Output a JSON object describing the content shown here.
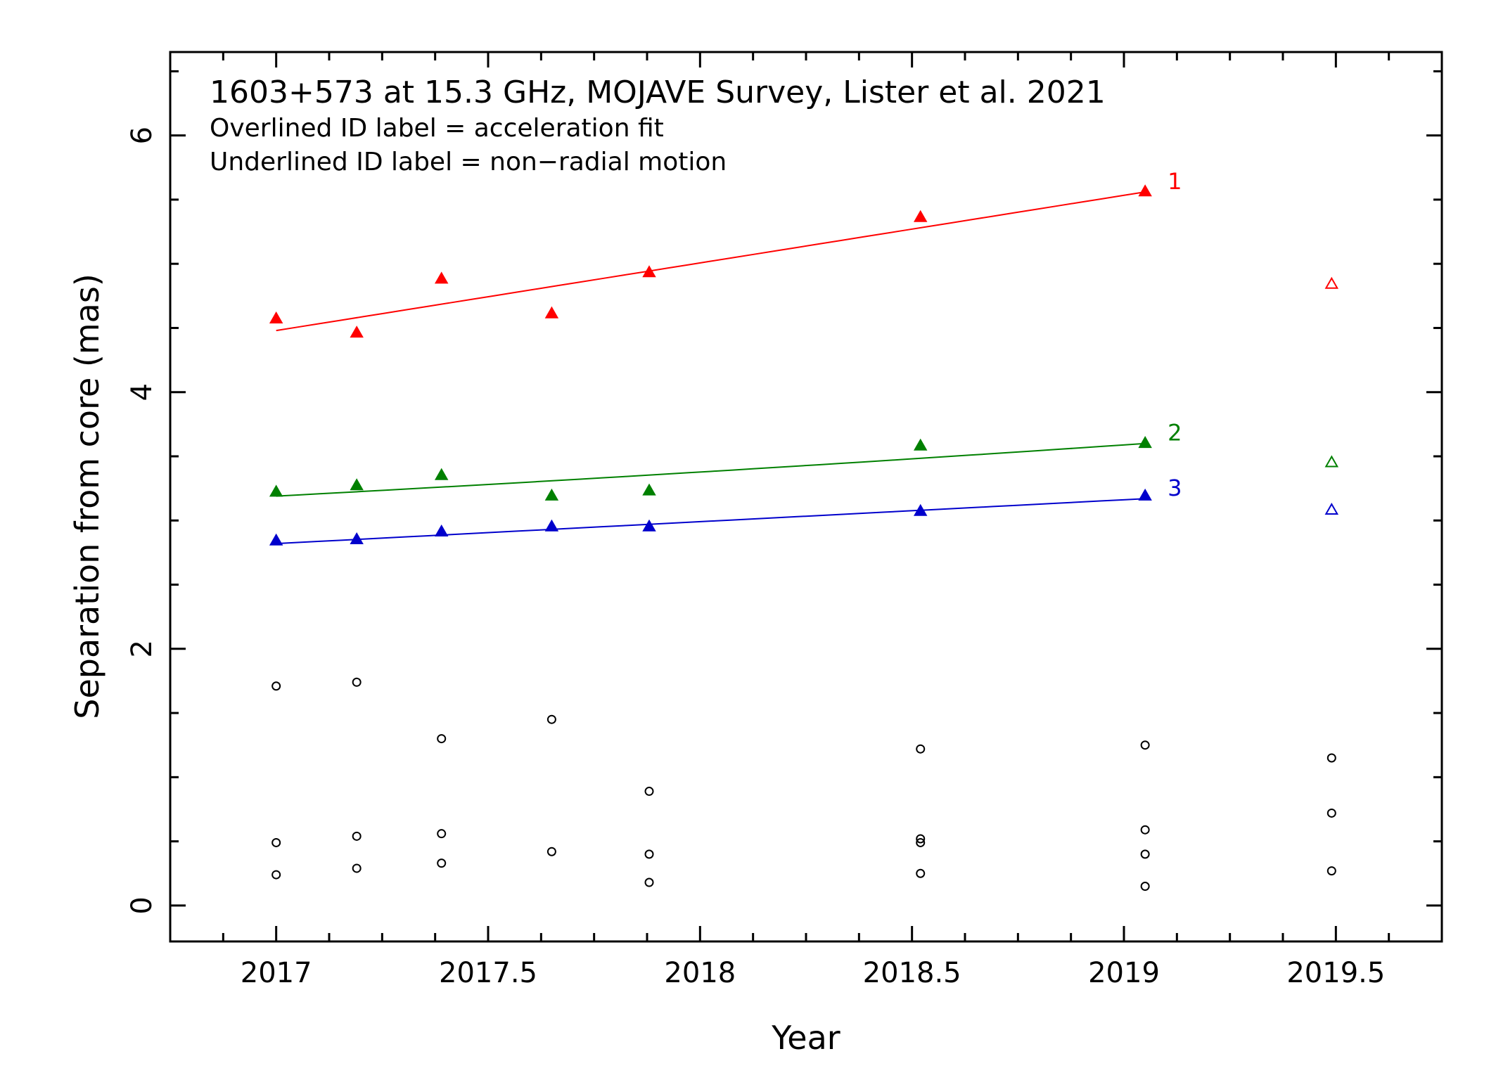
{
  "chart_data": {
    "type": "scatter",
    "title": "1603+573 at 15.3 GHz, MOJAVE Survey, Lister et al. 2021",
    "annotations": [
      "Overlined ID label = acceleration fit",
      "Underlined ID label = non−radial motion"
    ],
    "xlabel": "Year",
    "ylabel": "Separation from core (mas)",
    "xlim": [
      2016.75,
      2019.75
    ],
    "ylim": [
      -0.28,
      6.65
    ],
    "xticks": [
      2017,
      2017.5,
      2018,
      2018.5,
      2019,
      2019.5
    ],
    "xtick_labels": [
      "2017",
      "2017.5",
      "2018",
      "2018.5",
      "2019",
      "2019.5"
    ],
    "yticks": [
      0,
      2,
      4,
      6
    ],
    "ytick_labels": [
      "0",
      "2",
      "4",
      "6"
    ],
    "series": [
      {
        "name": "1",
        "color": "#ff0000",
        "marker": "filled-triangle",
        "points": [
          [
            2017.0,
            4.57
          ],
          [
            2017.19,
            4.46
          ],
          [
            2017.39,
            4.88
          ],
          [
            2017.65,
            4.61
          ],
          [
            2017.88,
            4.93
          ],
          [
            2018.52,
            5.36
          ],
          [
            2019.05,
            5.56
          ]
        ],
        "fit": [
          [
            2017.0,
            4.48
          ],
          [
            2019.05,
            5.56
          ]
        ],
        "fit_curvature": 0,
        "unfit_points": [
          [
            2019.49,
            4.84
          ]
        ]
      },
      {
        "name": "2",
        "color": "#008000",
        "marker": "filled-triangle",
        "points": [
          [
            2017.0,
            3.22
          ],
          [
            2017.19,
            3.27
          ],
          [
            2017.39,
            3.35
          ],
          [
            2017.65,
            3.19
          ],
          [
            2017.88,
            3.23
          ],
          [
            2018.52,
            3.58
          ],
          [
            2019.05,
            3.6
          ]
        ],
        "fit": [
          [
            2017.0,
            3.19
          ],
          [
            2019.05,
            3.6
          ]
        ],
        "fit_curvature": 0.05,
        "unfit_points": [
          [
            2019.49,
            3.45
          ]
        ]
      },
      {
        "name": "3",
        "color": "#0000cc",
        "marker": "filled-triangle",
        "points": [
          [
            2017.0,
            2.84
          ],
          [
            2017.19,
            2.85
          ],
          [
            2017.39,
            2.91
          ],
          [
            2017.65,
            2.95
          ],
          [
            2017.88,
            2.95
          ],
          [
            2018.52,
            3.07
          ],
          [
            2019.05,
            3.19
          ]
        ],
        "fit": [
          [
            2017.0,
            2.82
          ],
          [
            2019.05,
            3.17
          ]
        ],
        "fit_curvature": 0,
        "unfit_points": [
          [
            2019.49,
            3.08
          ]
        ]
      }
    ],
    "unidentified_components": {
      "color": "#000000",
      "marker": "open-circle",
      "points": [
        [
          2017.0,
          1.71
        ],
        [
          2017.0,
          0.49
        ],
        [
          2017.0,
          0.24
        ],
        [
          2017.19,
          1.74
        ],
        [
          2017.19,
          0.54
        ],
        [
          2017.19,
          0.29
        ],
        [
          2017.39,
          1.3
        ],
        [
          2017.39,
          0.56
        ],
        [
          2017.39,
          0.33
        ],
        [
          2017.65,
          1.45
        ],
        [
          2017.65,
          0.42
        ],
        [
          2017.88,
          0.89
        ],
        [
          2017.88,
          0.4
        ],
        [
          2017.88,
          0.18
        ],
        [
          2018.52,
          1.22
        ],
        [
          2018.52,
          0.52
        ],
        [
          2018.52,
          0.49
        ],
        [
          2018.52,
          0.25
        ],
        [
          2019.05,
          1.25
        ],
        [
          2019.05,
          0.59
        ],
        [
          2019.05,
          0.4
        ],
        [
          2019.05,
          0.15
        ],
        [
          2019.49,
          1.15
        ],
        [
          2019.49,
          0.72
        ],
        [
          2019.49,
          0.27
        ]
      ]
    },
    "grid": false,
    "legend": "none"
  }
}
